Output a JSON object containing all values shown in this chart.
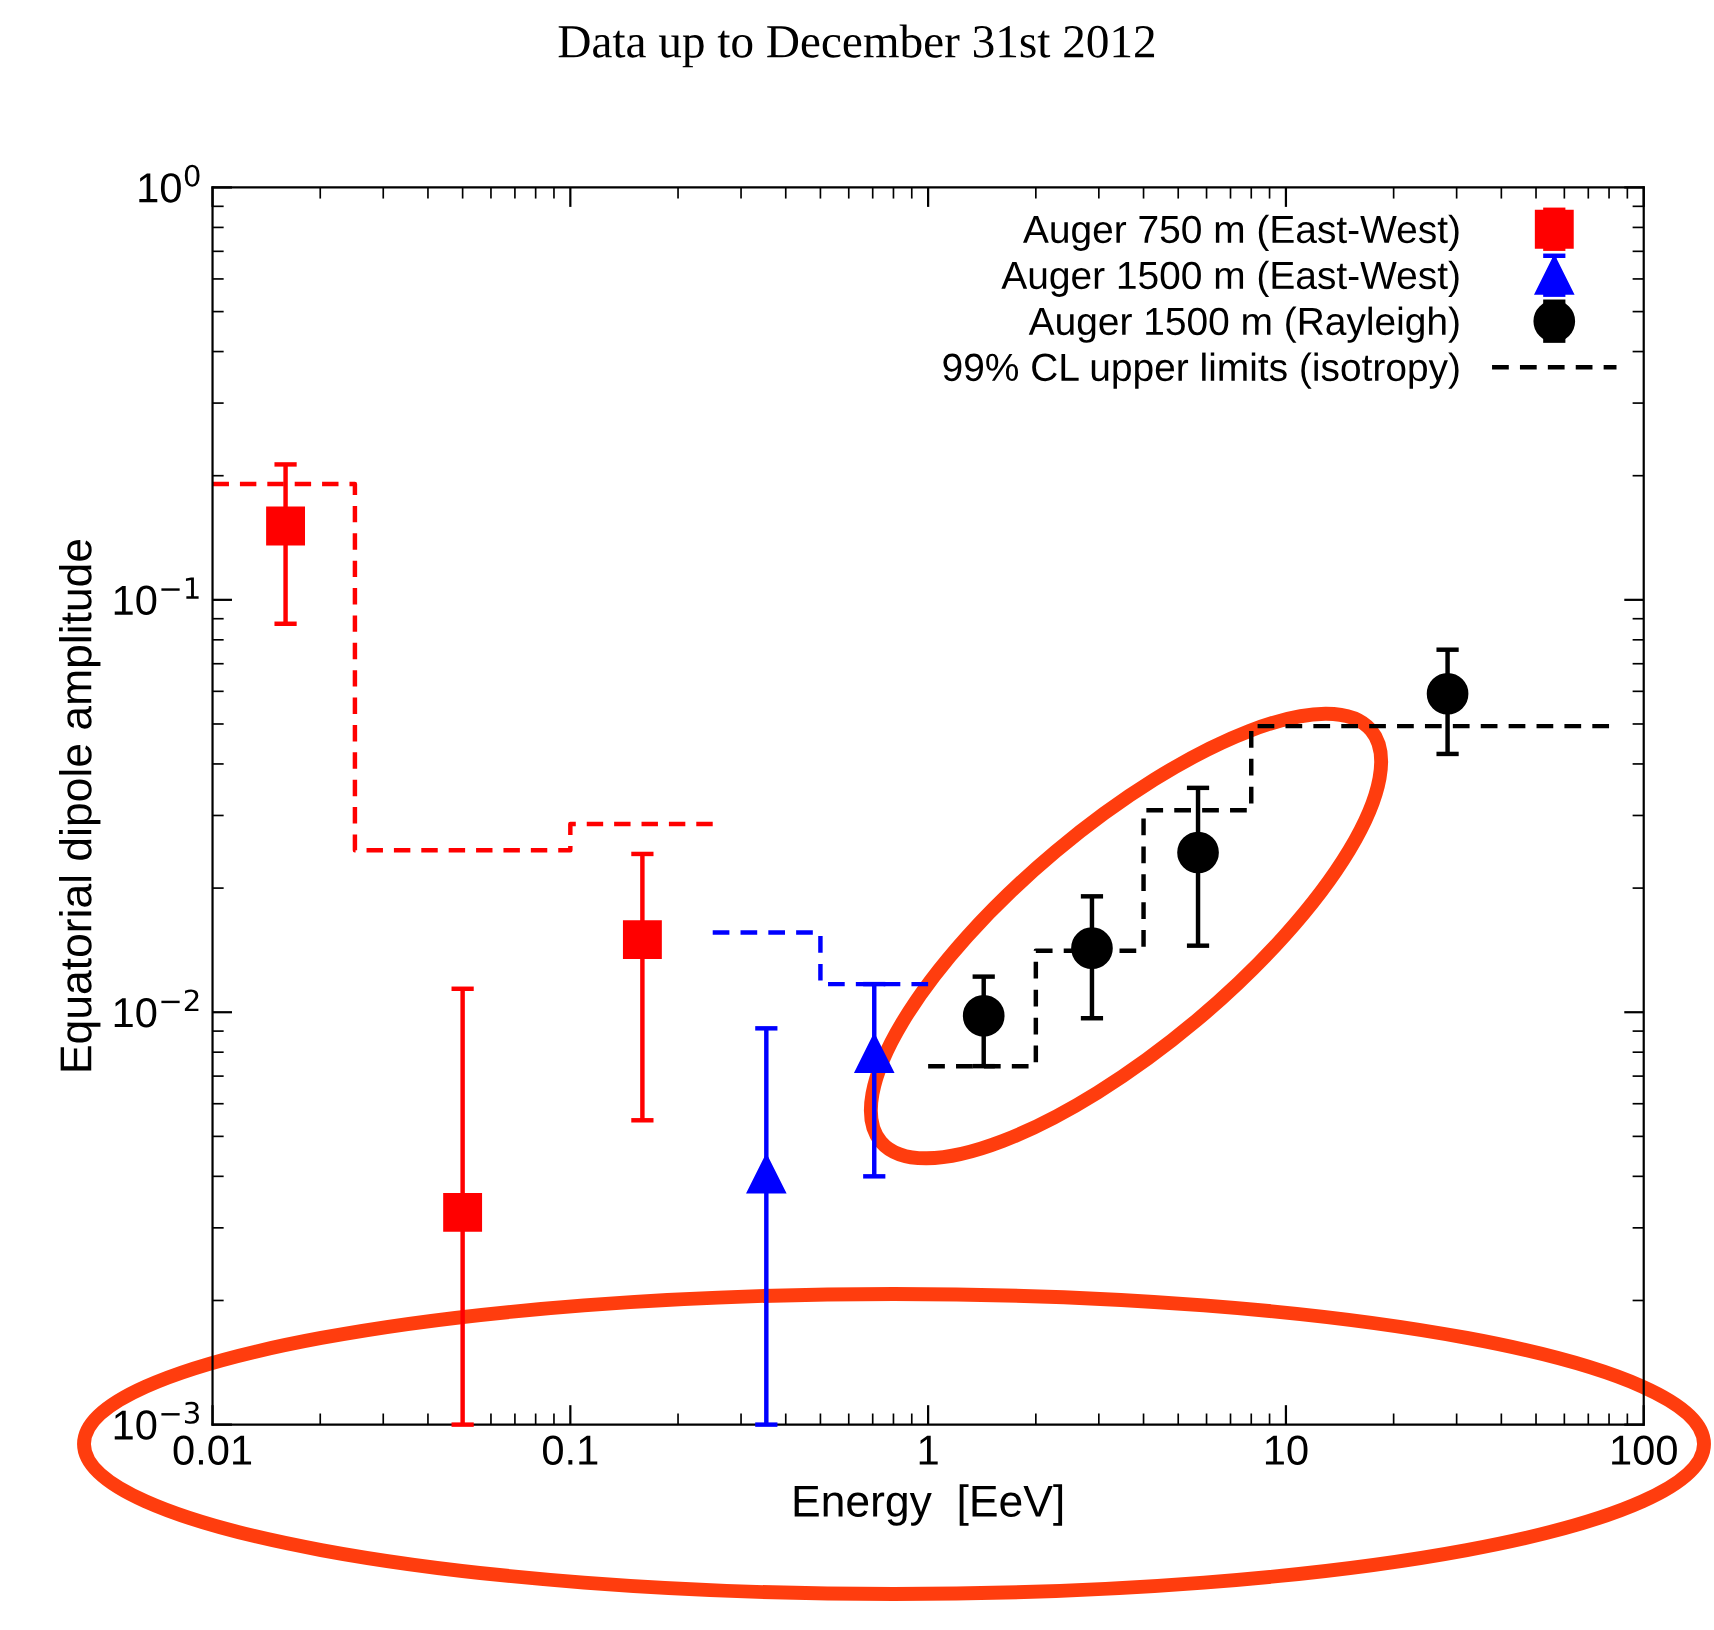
{
  "chart_data": {
    "type": "scatter",
    "title": "Data up to December 31st 2012",
    "xlabel": "Energy  [EeV]",
    "ylabel": "Equatorial dipole amplitude",
    "log": "xy",
    "xlim": [
      0.01,
      100
    ],
    "ylim": [
      0.001,
      1
    ],
    "xticks": [
      0.01,
      0.1,
      1,
      10,
      100
    ],
    "yticks": [
      {
        "value": 0.001,
        "label": "10$^{−3}$"
      },
      {
        "value": 0.01,
        "label": "10$^{−2}$"
      },
      {
        "value": 0.1,
        "label": "10$^{−1}$"
      },
      {
        "value": 1,
        "label": "10$^{0}$"
      }
    ],
    "grid": false,
    "legend": "top right",
    "series": [
      {
        "name": "Auger 750 m (East-West)",
        "marker": "square",
        "color": "#ff0000",
        "x": [
          0.016,
          0.05,
          0.159
        ],
        "values": [
          0.151,
          0.00327,
          0.015
        ],
        "errors": [
          [
            0.0875,
            0.213
          ],
          [
            0.001,
            0.0114
          ],
          [
            0.00547,
            0.0242
          ]
        ]
      },
      {
        "name": "Auger 1500 m (East-West)",
        "marker": "triangle",
        "color": "#0000ff",
        "x": [
          0.353,
          0.707
        ],
        "values": [
          0.00405,
          0.00794
        ],
        "errors": [
          [
            0.001,
            0.00914
          ],
          [
            0.004,
            0.0117
          ]
        ]
      },
      {
        "name": "Auger 1500 m (Rayleigh)",
        "marker": "circle",
        "color": "#000000",
        "x": [
          1.43,
          2.87,
          5.68,
          28.3
        ],
        "values": [
          0.0098,
          0.0143,
          0.0244,
          0.0592
        ],
        "errors": [
          [
            0.0074,
            0.0122
          ],
          [
            0.00967,
            0.0191
          ],
          [
            0.0145,
            0.035
          ],
          [
            0.0423,
            0.0757
          ]
        ]
      },
      {
        "type": "step",
        "line_style": "dashed",
        "color": "#ff0000",
        "x": [
          0.01,
          0.025,
          0.1,
          0.25
        ],
        "values": [
          0.191,
          0.0247,
          0.0286,
          0.0286
        ]
      },
      {
        "type": "step",
        "line_style": "dashed",
        "color": "#0000ff",
        "x": [
          0.25,
          0.5,
          1
        ],
        "values": [
          0.0156,
          0.0117,
          0.0117
        ]
      },
      {
        "name": "99% CL upper limits (isotropy)",
        "type": "step",
        "line_style": "dashed",
        "color": "#000000",
        "x": [
          1,
          2,
          4,
          8,
          80
        ],
        "values": [
          0.0074,
          0.0141,
          0.0309,
          0.0494,
          0.0494
        ]
      }
    ]
  }
}
